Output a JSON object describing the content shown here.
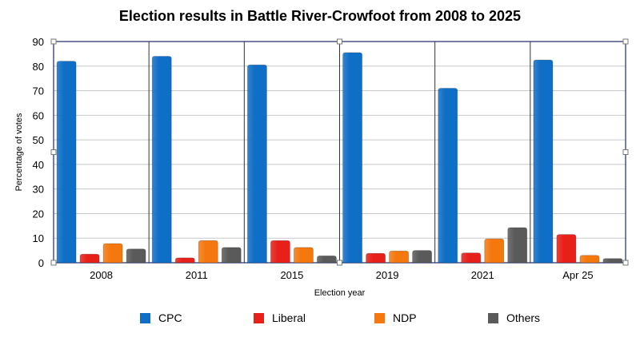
{
  "chart_data": {
    "type": "bar",
    "title": "Election results in Battle River-Crowfoot from 2008 to 2025",
    "xlabel": "Election year",
    "ylabel": "Percentage of votes",
    "ylim": [
      0,
      90
    ],
    "yticks": [
      0,
      10,
      20,
      30,
      40,
      50,
      60,
      70,
      80,
      90
    ],
    "categories": [
      "2008",
      "2011",
      "2015",
      "2019",
      "2021",
      "Apr 25"
    ],
    "series": [
      {
        "name": "CPC",
        "color": "#0f6fc6",
        "values": [
          82,
          84,
          80.5,
          85.5,
          71,
          82.5
        ]
      },
      {
        "name": "Liberal",
        "color": "#e8201a",
        "values": [
          3.5,
          2,
          9,
          3.8,
          4,
          11.5
        ]
      },
      {
        "name": "NDP",
        "color": "#f5780e",
        "values": [
          7.8,
          9,
          6.2,
          4.8,
          9.7,
          3
        ]
      },
      {
        "name": "Others",
        "color": "#5a5a5a",
        "values": [
          5.6,
          6.2,
          2.8,
          5,
          14.3,
          1.7
        ]
      }
    ],
    "legend_position": "bottom",
    "grid": true
  }
}
